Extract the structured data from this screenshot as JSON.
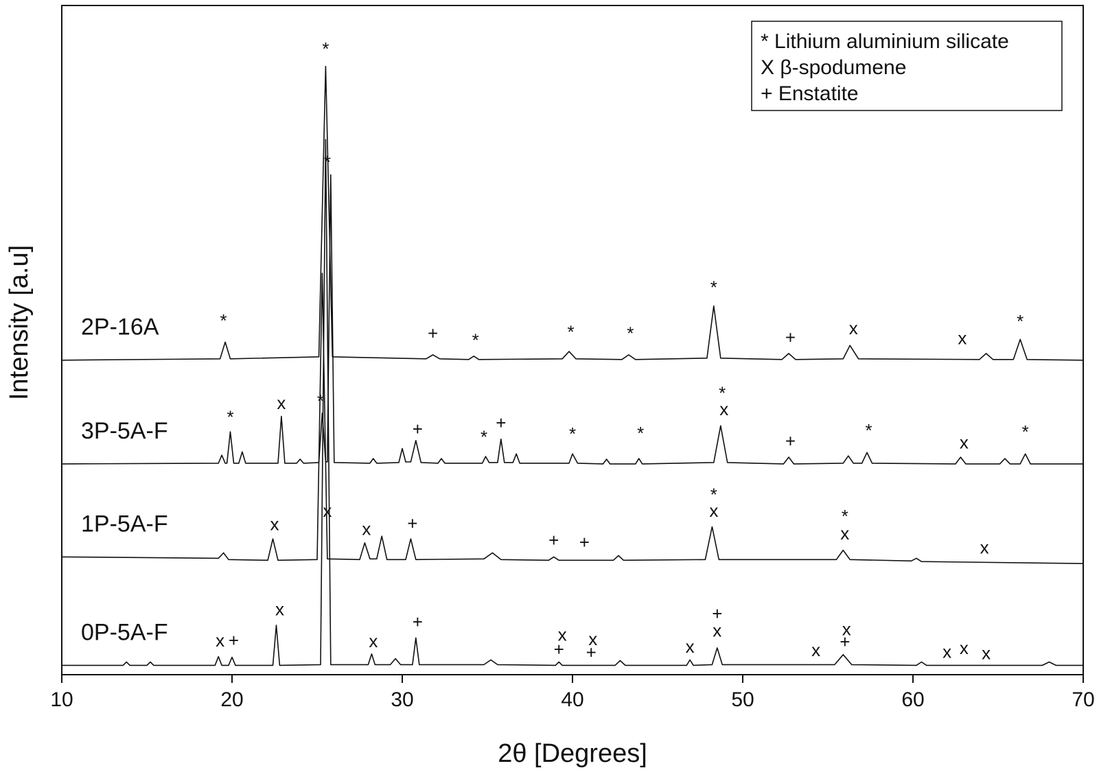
{
  "chart_data": {
    "type": "line",
    "x_label": "2θ [Degrees]",
    "y_label": "Intensity [a.u]",
    "xlim": [
      10,
      70
    ],
    "xticks": [
      10,
      20,
      30,
      40,
      50,
      60,
      70
    ],
    "ylim": [
      0,
      100
    ],
    "color": "#111111",
    "legend": [
      "* Lithium aluminium silicate",
      "X β-spodumene",
      "+ Enstatite"
    ],
    "legend_position": "upper right",
    "series": [
      {
        "name": "2P-16A",
        "x": [
          10,
          19.3,
          19.6,
          19.9,
          25.1,
          25.5,
          25.9,
          31.4,
          31.8,
          32.2,
          33.9,
          34.2,
          34.5,
          39.4,
          39.8,
          40.2,
          42.9,
          43.3,
          43.7,
          47.9,
          48.3,
          48.7,
          52.3,
          52.7,
          53.1,
          55.9,
          56.3,
          56.8,
          63.9,
          64.3,
          64.7,
          65.9,
          66.3,
          66.7,
          70
        ],
        "values": [
          47.0,
          47.2,
          49.7,
          47.2,
          47.5,
          90.9,
          47.5,
          47.2,
          47.8,
          47.2,
          47.1,
          47.6,
          47.1,
          47.2,
          48.3,
          47.2,
          47.1,
          47.8,
          47.1,
          47.3,
          55.1,
          47.3,
          47.1,
          48.0,
          47.1,
          47.2,
          49.2,
          47.2,
          47.1,
          48.0,
          47.1,
          47.1,
          50.1,
          47.1,
          47.0
        ]
      },
      {
        "name": "3P-5A-F",
        "x": [
          10,
          19.2,
          19.4,
          19.6,
          19.7,
          19.9,
          20.1,
          20.4,
          20.6,
          20.8,
          22.7,
          22.9,
          23.1,
          23.8,
          24.0,
          24.2,
          25.1,
          25.3,
          25.5,
          25.6,
          25.8,
          26.0,
          28.1,
          28.3,
          28.5,
          29.8,
          30.0,
          30.2,
          30.5,
          30.8,
          31.1,
          32.1,
          32.3,
          32.5,
          34.7,
          34.9,
          35.1,
          35.6,
          35.8,
          36.0,
          36.5,
          36.7,
          36.9,
          39.8,
          40.0,
          40.3,
          41.8,
          42.0,
          42.2,
          43.7,
          43.9,
          44.1,
          48.3,
          48.7,
          49.1,
          52.4,
          52.7,
          53.0,
          55.9,
          56.2,
          56.5,
          57.0,
          57.3,
          57.6,
          62.5,
          62.8,
          63.1,
          65.1,
          65.4,
          65.7,
          66.3,
          66.6,
          66.9,
          70
        ],
        "values": [
          31.5,
          31.6,
          32.8,
          31.6,
          31.6,
          36.3,
          31.6,
          31.6,
          33.3,
          31.6,
          31.6,
          38.6,
          31.6,
          31.6,
          32.2,
          31.6,
          31.7,
          39.1,
          31.8,
          31.8,
          74.7,
          31.7,
          31.6,
          32.3,
          31.6,
          31.7,
          33.8,
          31.8,
          31.8,
          35.0,
          31.7,
          31.6,
          32.3,
          31.6,
          31.6,
          32.6,
          31.7,
          31.7,
          35.2,
          31.7,
          31.7,
          33.0,
          31.6,
          31.6,
          33.0,
          31.6,
          31.5,
          32.2,
          31.5,
          31.5,
          32.3,
          31.5,
          31.7,
          37.2,
          31.7,
          31.5,
          32.5,
          31.5,
          31.6,
          32.7,
          31.6,
          31.6,
          33.2,
          31.6,
          31.5,
          32.5,
          31.5,
          31.5,
          32.3,
          31.5,
          31.5,
          33.0,
          31.5,
          31.5
        ]
      },
      {
        "name": "1P-5A-F",
        "x": [
          10,
          19.2,
          19.5,
          19.8,
          22.1,
          22.4,
          22.7,
          25.0,
          25.3,
          25.6,
          27.5,
          27.8,
          28.1,
          28.5,
          28.8,
          29.1,
          30.2,
          30.5,
          30.8,
          34.8,
          35.3,
          35.8,
          38.6,
          38.9,
          39.2,
          42.4,
          42.7,
          43.0,
          47.8,
          48.2,
          48.6,
          55.5,
          55.9,
          56.3,
          59.9,
          60.2,
          60.5,
          70
        ],
        "values": [
          17.6,
          17.4,
          18.2,
          17.2,
          17.1,
          20.3,
          17.1,
          17.2,
          60.0,
          17.3,
          17.2,
          19.7,
          17.3,
          17.3,
          20.7,
          17.2,
          17.2,
          20.3,
          17.2,
          17.3,
          18.2,
          17.2,
          17.1,
          17.6,
          17.1,
          17.1,
          17.8,
          17.1,
          17.2,
          22.1,
          17.2,
          17.2,
          18.6,
          17.2,
          17.0,
          17.4,
          16.9,
          16.6
        ]
      },
      {
        "name": "0P-5A-F",
        "x": [
          10,
          13.6,
          13.8,
          14.0,
          15.0,
          15.2,
          15.4,
          19.0,
          19.2,
          19.4,
          19.8,
          20.0,
          20.2,
          22.4,
          22.6,
          22.8,
          25.2,
          25.5,
          25.8,
          28.0,
          28.2,
          28.4,
          29.3,
          29.6,
          29.9,
          30.6,
          30.8,
          31.0,
          34.8,
          35.2,
          35.6,
          39.0,
          39.2,
          39.4,
          42.5,
          42.8,
          43.1,
          46.7,
          46.9,
          47.1,
          48.2,
          48.5,
          48.8,
          55.4,
          55.9,
          56.4,
          60.2,
          60.5,
          60.8,
          67.6,
          68.0,
          68.4,
          70
        ],
        "values": [
          1.4,
          1.4,
          1.9,
          1.4,
          1.4,
          1.9,
          1.4,
          1.4,
          2.7,
          1.4,
          1.4,
          2.6,
          1.4,
          1.4,
          7.4,
          1.4,
          1.5,
          80.0,
          1.5,
          1.5,
          3.1,
          1.5,
          1.5,
          2.4,
          1.5,
          1.5,
          5.5,
          1.5,
          1.5,
          2.2,
          1.5,
          1.4,
          1.9,
          1.4,
          1.4,
          2.1,
          1.4,
          1.4,
          2.2,
          1.4,
          1.5,
          4.0,
          1.5,
          1.5,
          3.0,
          1.5,
          1.4,
          1.9,
          1.4,
          1.4,
          1.9,
          1.4,
          1.4
        ]
      }
    ],
    "annotations": [
      {
        "text": "*",
        "x": 19.5,
        "y": 52.7
      },
      {
        "text": "*",
        "x": 25.5,
        "y": 93.3
      },
      {
        "text": "+",
        "x": 31.8,
        "y": 50.8
      },
      {
        "text": "*",
        "x": 34.3,
        "y": 49.8
      },
      {
        "text": "*",
        "x": 39.9,
        "y": 51.0
      },
      {
        "text": "*",
        "x": 43.4,
        "y": 50.8
      },
      {
        "text": "*",
        "x": 48.3,
        "y": 57.7
      },
      {
        "text": "+",
        "x": 52.8,
        "y": 50.2
      },
      {
        "text": "x",
        "x": 56.5,
        "y": 51.6
      },
      {
        "text": "x",
        "x": 62.9,
        "y": 50.1
      },
      {
        "text": "*",
        "x": 66.3,
        "y": 52.6
      },
      {
        "text": "*",
        "x": 19.9,
        "y": 38.3
      },
      {
        "text": "x",
        "x": 22.9,
        "y": 40.4
      },
      {
        "text": "*",
        "x": 25.2,
        "y": 40.7
      },
      {
        "text": "*",
        "x": 25.6,
        "y": 76.4
      },
      {
        "text": "+",
        "x": 30.9,
        "y": 36.5
      },
      {
        "text": "*",
        "x": 34.8,
        "y": 35.3
      },
      {
        "text": "+",
        "x": 35.8,
        "y": 37.4
      },
      {
        "text": "*",
        "x": 40.0,
        "y": 35.8
      },
      {
        "text": "*",
        "x": 44.0,
        "y": 35.9
      },
      {
        "text": "*",
        "x": 48.8,
        "y": 41.9
      },
      {
        "text": "x",
        "x": 48.9,
        "y": 39.5
      },
      {
        "text": "+",
        "x": 52.8,
        "y": 34.7
      },
      {
        "text": "*",
        "x": 57.4,
        "y": 36.3
      },
      {
        "text": "x",
        "x": 63.0,
        "y": 34.5
      },
      {
        "text": "*",
        "x": 66.6,
        "y": 36.1
      },
      {
        "text": "x",
        "x": 22.5,
        "y": 22.3
      },
      {
        "text": "x",
        "x": 25.6,
        "y": 24.3
      },
      {
        "text": "x",
        "x": 27.9,
        "y": 21.6
      },
      {
        "text": "+",
        "x": 30.6,
        "y": 22.4
      },
      {
        "text": "+",
        "x": 38.9,
        "y": 19.9
      },
      {
        "text": "+",
        "x": 40.7,
        "y": 19.6
      },
      {
        "text": "*",
        "x": 48.3,
        "y": 26.7
      },
      {
        "text": "x",
        "x": 48.3,
        "y": 24.3
      },
      {
        "text": "*",
        "x": 56.0,
        "y": 23.5
      },
      {
        "text": "x",
        "x": 56.0,
        "y": 20.9
      },
      {
        "text": "x",
        "x": 64.2,
        "y": 18.8
      },
      {
        "text": "x",
        "x": 19.3,
        "y": 4.9
      },
      {
        "text": "+",
        "x": 20.1,
        "y": 4.9
      },
      {
        "text": "x",
        "x": 22.8,
        "y": 9.6
      },
      {
        "text": "x",
        "x": 28.3,
        "y": 4.8
      },
      {
        "text": "+",
        "x": 30.9,
        "y": 7.7
      },
      {
        "text": "x",
        "x": 39.4,
        "y": 5.8
      },
      {
        "text": "+",
        "x": 39.2,
        "y": 3.6
      },
      {
        "text": "x",
        "x": 41.2,
        "y": 5.1
      },
      {
        "text": "+",
        "x": 41.1,
        "y": 3.1
      },
      {
        "text": "x",
        "x": 46.9,
        "y": 4.0
      },
      {
        "text": "+",
        "x": 48.5,
        "y": 8.9
      },
      {
        "text": "x",
        "x": 48.5,
        "y": 6.4
      },
      {
        "text": "x",
        "x": 54.3,
        "y": 3.5
      },
      {
        "text": "x",
        "x": 56.1,
        "y": 6.6
      },
      {
        "text": "+",
        "x": 56.0,
        "y": 4.7
      },
      {
        "text": "x",
        "x": 62.0,
        "y": 3.2
      },
      {
        "text": "x",
        "x": 63.0,
        "y": 3.8
      },
      {
        "text": "x",
        "x": 64.3,
        "y": 3.0
      }
    ]
  }
}
